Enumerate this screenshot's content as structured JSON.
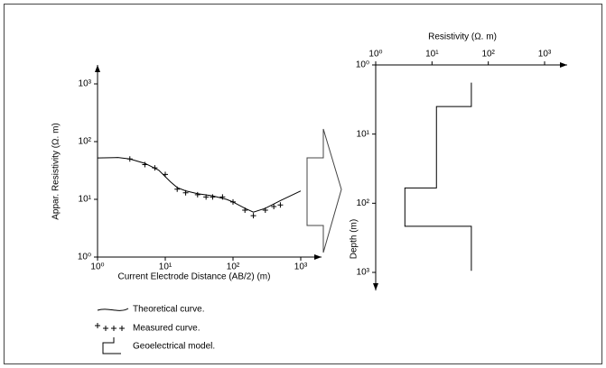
{
  "chart_data": [
    {
      "type": "line",
      "xscale": "log",
      "yscale": "log",
      "xlabel": "Current Electrode Distance (AB/2) (m)",
      "ylabel": "Appar. Resistivity (Ω. m)",
      "xlim": [
        1,
        1000
      ],
      "ylim": [
        1,
        1000
      ],
      "xticks": [
        {
          "value": 1,
          "label": "10⁰"
        },
        {
          "value": 10,
          "label": "10¹"
        },
        {
          "value": 100,
          "label": "10²"
        },
        {
          "value": 1000,
          "label": "10³"
        }
      ],
      "yticks": [
        {
          "value": 1,
          "label": "10⁰"
        },
        {
          "value": 10,
          "label": "10¹"
        },
        {
          "value": 100,
          "label": "10²"
        },
        {
          "value": 1000,
          "label": "10³"
        }
      ],
      "series": [
        {
          "name": "Theoretical curve.",
          "color": "#000000",
          "marker": "none",
          "x": [
            1,
            2,
            3,
            5,
            8,
            12,
            15,
            20,
            30,
            50,
            80,
            100,
            150,
            200,
            300,
            500,
            1000
          ],
          "values": [
            52,
            53,
            50,
            42,
            32,
            20,
            16,
            14,
            12.5,
            11.5,
            10,
            9,
            7,
            6,
            7,
            9.5,
            14
          ]
        },
        {
          "name": "Measured curve.",
          "color": "#000000",
          "marker": "+",
          "x": [
            3,
            5,
            7,
            10,
            15,
            20,
            30,
            40,
            50,
            70,
            100,
            150,
            200,
            300,
            400,
            500
          ],
          "values": [
            50,
            40,
            35,
            27,
            15,
            13,
            12,
            11,
            11,
            11,
            9,
            6.5,
            5.2,
            6.5,
            7.5,
            8
          ]
        }
      ]
    },
    {
      "type": "line",
      "xscale": "log",
      "yscale": "log",
      "x_axis_position": "top",
      "y_direction": "down",
      "xlabel": "Resistivity (Ω. m)",
      "ylabel": "Depth (m)",
      "xlim": [
        1,
        1000
      ],
      "ylim": [
        1,
        1000
      ],
      "xticks": [
        {
          "value": 1,
          "label": "10⁰"
        },
        {
          "value": 10,
          "label": "10¹"
        },
        {
          "value": 100,
          "label": "10²"
        },
        {
          "value": 1000,
          "label": "10³"
        }
      ],
      "yticks": [
        {
          "value": 1,
          "label": "10⁰"
        },
        {
          "value": 10,
          "label": "10¹"
        },
        {
          "value": 100,
          "label": "10²"
        },
        {
          "value": 1000,
          "label": "10³"
        }
      ],
      "series": [
        {
          "name": "Geoelectrical model.",
          "color": "#000000",
          "marker": "none",
          "x": [
            50,
            50,
            12,
            12,
            3.3,
            3.3,
            50,
            50
          ],
          "values": [
            1.8,
            4,
            4,
            60,
            60,
            215,
            215,
            950
          ]
        }
      ]
    }
  ]
}
